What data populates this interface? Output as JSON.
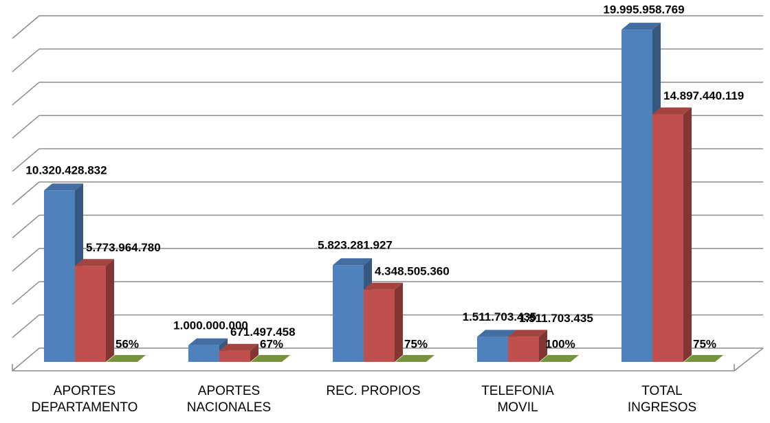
{
  "chart_data": {
    "type": "bar3d",
    "categories": [
      "APORTES\nDEPARTAMENTO",
      "APORTES\nNACIONALES",
      "REC. PROPIOS",
      "TELEFONIA\nMOVIL",
      "TOTAL\nINGRESOS"
    ],
    "series": [
      {
        "color": "#4f81bd",
        "values": [
          10320428832,
          1000000000,
          5823281927,
          1511703435,
          19995958769
        ],
        "value_labels": [
          "10.320.428.832",
          "1.000.000.000",
          "5.823.281.927",
          "1.511.703.435",
          "19.995.958.769"
        ]
      },
      {
        "color": "#c0504d",
        "values": [
          5773964780,
          671497458,
          4348505360,
          1511703435,
          14897440119
        ],
        "value_labels": [
          "5.773.964.780",
          "671.497.458",
          "4.348.505.360",
          "1.511.703.435",
          "14.897.440.119"
        ]
      },
      {
        "color": "#77933c",
        "values": [
          56,
          67,
          75,
          100,
          75
        ],
        "value_labels": [
          "56%",
          "67%",
          "75%",
          "100%",
          "75%"
        ]
      }
    ],
    "ylim": [
      0,
      20000000000
    ],
    "yticks": [
      0,
      2000000000,
      4000000000,
      6000000000,
      8000000000,
      10000000000,
      12000000000,
      14000000000,
      16000000000,
      18000000000,
      20000000000
    ],
    "grid": true
  }
}
